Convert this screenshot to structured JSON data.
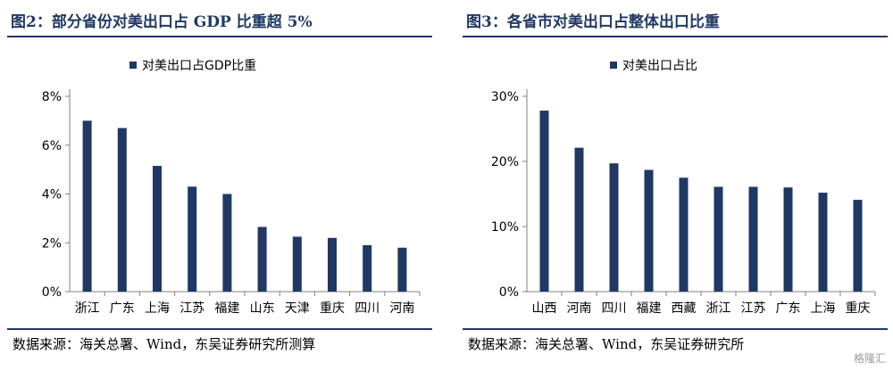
{
  "chart_data": [
    {
      "type": "bar",
      "title": "图2：部分省份对美出口占 GDP 比重超 5%",
      "legend": "对美出口占GDP比重",
      "legend_position": "top-center",
      "categories": [
        "浙江",
        "广东",
        "上海",
        "江苏",
        "福建",
        "山东",
        "天津",
        "重庆",
        "四川",
        "河南"
      ],
      "values": [
        7.0,
        6.7,
        5.15,
        4.3,
        4.0,
        2.65,
        2.25,
        2.2,
        1.9,
        1.8
      ],
      "ylim": [
        0,
        8
      ],
      "yticks": [
        0,
        2,
        4,
        6,
        8
      ],
      "ytick_labels": [
        "0%",
        "2%",
        "4%",
        "6%",
        "8%"
      ],
      "grid": false,
      "color": "#1f3864",
      "source": "数据来源：海关总署、Wind，东吴证券研究所测算"
    },
    {
      "type": "bar",
      "title": "图3：各省市对美出口占整体出口比重",
      "legend": "对美出口占比",
      "legend_position": "top-center",
      "categories": [
        "山西",
        "河南",
        "四川",
        "福建",
        "西藏",
        "浙江",
        "江苏",
        "广东",
        "上海",
        "重庆"
      ],
      "values": [
        27.8,
        22.1,
        19.7,
        18.7,
        17.5,
        16.1,
        16.1,
        16.0,
        15.2,
        14.1
      ],
      "ylim": [
        0,
        30
      ],
      "yticks": [
        0,
        10,
        20,
        30
      ],
      "ytick_labels": [
        "0%",
        "10%",
        "20%",
        "30%"
      ],
      "grid": false,
      "color": "#1f3864",
      "source": "数据来源：海关总署、Wind，东吴证券研究所"
    }
  ],
  "watermark": "格隆汇"
}
